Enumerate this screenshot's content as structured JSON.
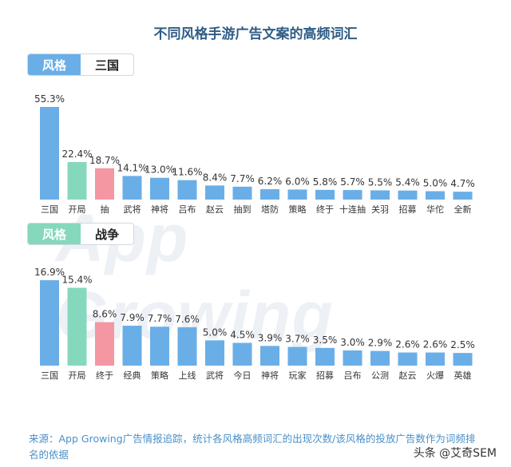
{
  "title": "不同风格手游广告文案的高频词汇",
  "watermark": "App Growing",
  "source_note": "来源：App Growing广告情报追踪，统计各风格高频词汇的出现次数/该风格的投放广告数作为词频排名的依据",
  "credit": "头条 @艾奇SEM",
  "chart_data": [
    {
      "type": "bar",
      "tag_key": "风格",
      "tag_value": "三国",
      "categories": [
        "三国",
        "开局",
        "抽",
        "武将",
        "神将",
        "吕布",
        "赵云",
        "抽到",
        "塔防",
        "策略",
        "终于",
        "十连抽",
        "关羽",
        "招募",
        "华佗",
        "全新"
      ],
      "values": [
        55.3,
        22.4,
        18.7,
        14.1,
        13.0,
        11.6,
        8.4,
        7.7,
        6.2,
        6.0,
        5.8,
        5.7,
        5.5,
        5.4,
        5.0,
        4.7
      ],
      "labels": [
        "55.3%",
        "22.4%",
        "18.7%",
        "14.1%",
        "13.0%",
        "11.6%",
        "8.4%",
        "7.7%",
        "6.2%",
        "6.0%",
        "5.8%",
        "5.7%",
        "5.5%",
        "5.4%",
        "5.0%",
        "4.7%"
      ],
      "colors": [
        "#6aaee7",
        "#86d8bc",
        "#f497a3",
        "#6aaee7",
        "#6aaee7",
        "#6aaee7",
        "#6aaee7",
        "#6aaee7",
        "#6aaee7",
        "#6aaee7",
        "#6aaee7",
        "#6aaee7",
        "#6aaee7",
        "#6aaee7",
        "#6aaee7",
        "#6aaee7"
      ],
      "ylim": [
        0,
        55.3
      ]
    },
    {
      "type": "bar",
      "tag_key": "风格",
      "tag_value": "战争",
      "categories": [
        "三国",
        "开局",
        "终于",
        "经典",
        "策略",
        "上线",
        "武将",
        "今日",
        "神将",
        "玩家",
        "招募",
        "吕布",
        "公测",
        "赵云",
        "火爆",
        "英雄"
      ],
      "values": [
        16.9,
        15.4,
        8.6,
        7.9,
        7.7,
        7.6,
        5.0,
        4.5,
        3.9,
        3.7,
        3.5,
        3.0,
        2.9,
        2.6,
        2.6,
        2.5
      ],
      "labels": [
        "16.9%",
        "15.4%",
        "8.6%",
        "7.9%",
        "7.7%",
        "7.6%",
        "5.0%",
        "4.5%",
        "3.9%",
        "3.7%",
        "3.5%",
        "3.0%",
        "2.9%",
        "2.6%",
        "2.6%",
        "2.5%"
      ],
      "colors": [
        "#6aaee7",
        "#86d8bc",
        "#f497a3",
        "#6aaee7",
        "#6aaee7",
        "#6aaee7",
        "#6aaee7",
        "#6aaee7",
        "#6aaee7",
        "#6aaee7",
        "#6aaee7",
        "#6aaee7",
        "#6aaee7",
        "#6aaee7",
        "#6aaee7",
        "#6aaee7"
      ],
      "ylim": [
        0,
        16.9
      ]
    }
  ]
}
